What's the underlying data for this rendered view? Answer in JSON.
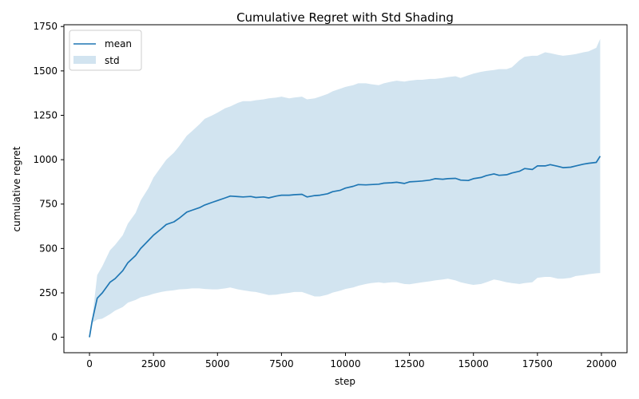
{
  "chart_data": {
    "type": "line",
    "title": "Cumulative Regret with Std Shading",
    "xlabel": "step",
    "ylabel": "cumulative regret",
    "xlim": [
      -1000,
      21000
    ],
    "ylim": [
      -87,
      1760
    ],
    "xticks": [
      0,
      2500,
      5000,
      7500,
      10000,
      12500,
      15000,
      17500,
      20000
    ],
    "yticks": [
      0,
      250,
      500,
      750,
      1000,
      1250,
      1500,
      1750
    ],
    "grid": false,
    "legend_position": "upper-left",
    "legend": [
      {
        "label": "mean",
        "kind": "line"
      },
      {
        "label": "std",
        "kind": "band"
      }
    ],
    "colors": {
      "mean": "#1f77b4",
      "std": "#1f77b4"
    },
    "series": [
      {
        "name": "mean",
        "x": [
          0,
          100,
          300,
          500,
          800,
          1000,
          1300,
          1500,
          1800,
          2000,
          2300,
          2500,
          2800,
          3000,
          3300,
          3500,
          3800,
          4000,
          4300,
          4500,
          4800,
          5000,
          5300,
          5500,
          5800,
          6000,
          6300,
          6500,
          6800,
          7000,
          7300,
          7500,
          7800,
          8000,
          8300,
          8500,
          8800,
          9000,
          9300,
          9500,
          9800,
          10000,
          10300,
          10500,
          10800,
          11000,
          11300,
          11500,
          11800,
          12000,
          12300,
          12500,
          12800,
          13000,
          13300,
          13500,
          13800,
          14000,
          14300,
          14500,
          14800,
          15000,
          15300,
          15500,
          15800,
          16000,
          16300,
          16500,
          16800,
          17000,
          17300,
          17500,
          17800,
          18000,
          18300,
          18500,
          18800,
          19000,
          19300,
          19500,
          19800,
          19950
        ],
        "y": [
          0,
          90,
          220,
          250,
          310,
          330,
          375,
          420,
          460,
          500,
          545,
          575,
          610,
          635,
          650,
          670,
          705,
          715,
          730,
          745,
          760,
          770,
          785,
          795,
          792,
          790,
          793,
          787,
          790,
          785,
          795,
          800,
          800,
          803,
          805,
          790,
          798,
          800,
          808,
          820,
          828,
          840,
          850,
          860,
          858,
          860,
          862,
          868,
          870,
          873,
          866,
          875,
          878,
          880,
          885,
          893,
          890,
          893,
          895,
          885,
          883,
          893,
          900,
          910,
          920,
          912,
          915,
          925,
          935,
          950,
          945,
          965,
          965,
          972,
          963,
          955,
          958,
          965,
          975,
          980,
          985,
          1020
        ]
      },
      {
        "name": "std",
        "x": [
          0,
          100,
          300,
          500,
          800,
          1000,
          1300,
          1500,
          1800,
          2000,
          2300,
          2500,
          2800,
          3000,
          3300,
          3500,
          3800,
          4000,
          4300,
          4500,
          4800,
          5000,
          5300,
          5500,
          5800,
          6000,
          6300,
          6500,
          6800,
          7000,
          7300,
          7500,
          7800,
          8000,
          8300,
          8500,
          8800,
          9000,
          9300,
          9500,
          9800,
          10000,
          10300,
          10500,
          10800,
          11000,
          11300,
          11500,
          11800,
          12000,
          12300,
          12500,
          12800,
          13000,
          13300,
          13500,
          13800,
          14000,
          14300,
          14500,
          14800,
          15000,
          15300,
          15500,
          15800,
          16000,
          16300,
          16500,
          16800,
          17000,
          17300,
          17500,
          17800,
          18000,
          18300,
          18500,
          18800,
          19000,
          19300,
          19500,
          19800,
          19950
        ],
        "lower": [
          0,
          80,
          100,
          105,
          130,
          150,
          170,
          195,
          210,
          225,
          235,
          245,
          255,
          260,
          265,
          270,
          272,
          275,
          275,
          272,
          270,
          270,
          275,
          280,
          270,
          265,
          258,
          255,
          245,
          238,
          240,
          245,
          250,
          255,
          255,
          245,
          230,
          230,
          240,
          252,
          262,
          272,
          280,
          290,
          300,
          305,
          310,
          305,
          310,
          310,
          300,
          298,
          305,
          310,
          315,
          320,
          325,
          330,
          320,
          310,
          300,
          295,
          300,
          310,
          325,
          320,
          310,
          305,
          300,
          305,
          310,
          335,
          340,
          340,
          330,
          330,
          335,
          345,
          350,
          355,
          360,
          362
        ],
        "upper": [
          0,
          100,
          350,
          400,
          490,
          520,
          575,
          640,
          700,
          770,
          840,
          900,
          960,
          1000,
          1040,
          1075,
          1135,
          1160,
          1200,
          1230,
          1250,
          1265,
          1290,
          1300,
          1320,
          1330,
          1330,
          1335,
          1340,
          1345,
          1350,
          1355,
          1345,
          1350,
          1355,
          1340,
          1345,
          1355,
          1370,
          1385,
          1400,
          1410,
          1420,
          1430,
          1430,
          1425,
          1420,
          1430,
          1440,
          1445,
          1440,
          1445,
          1450,
          1450,
          1455,
          1455,
          1460,
          1465,
          1470,
          1460,
          1475,
          1485,
          1495,
          1500,
          1505,
          1510,
          1510,
          1520,
          1560,
          1580,
          1585,
          1585,
          1605,
          1600,
          1590,
          1585,
          1590,
          1595,
          1605,
          1610,
          1630,
          1680
        ]
      }
    ]
  }
}
